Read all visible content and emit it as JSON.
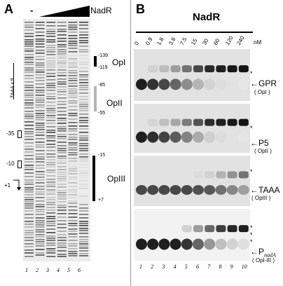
{
  "panelA": {
    "letter": "A",
    "minus": "-",
    "protein": "NadR",
    "lane_numbers": [
      "1",
      "2",
      "3",
      "4",
      "5",
      "6"
    ],
    "left_markers": {
      "taaa": "TAAA x 9",
      "m35": "-35",
      "m10": "-10",
      "tss": "+1"
    },
    "operators": [
      {
        "name": "OpI",
        "top": "-139",
        "bottom": "-119",
        "color": "#000000"
      },
      {
        "name": "OpIII",
        "top": "-85",
        "bottom": "-55",
        "color": "#b4b4b4"
      },
      {
        "name": "OpII",
        "top": "-15",
        "bottom": "+7",
        "color": "#000000"
      }
    ]
  },
  "panelB": {
    "letter": "B",
    "protein": "NadR",
    "unit": "nM",
    "concentrations": [
      "0",
      "0.9",
      "1.8",
      "3.8",
      "7.5",
      "15",
      "30",
      "60",
      "120",
      "240"
    ],
    "lane_numbers": [
      "1",
      "2",
      "3",
      "4",
      "5",
      "6",
      "7",
      "8",
      "9",
      "10"
    ],
    "probes": [
      {
        "name": "GPR",
        "op": "( OpI )",
        "stars": [
          "*"
        ]
      },
      {
        "name": "P5",
        "op": "( OpII )",
        "stars": [
          "*"
        ]
      },
      {
        "name": "TAAA",
        "op": "( OpIII )",
        "stars": [
          "*"
        ]
      },
      {
        "name_main": "P",
        "name_sub": "nadA",
        "op": "( OpI-III )",
        "stars": [
          "*",
          "*",
          "*"
        ]
      }
    ],
    "arrow": "←"
  }
}
